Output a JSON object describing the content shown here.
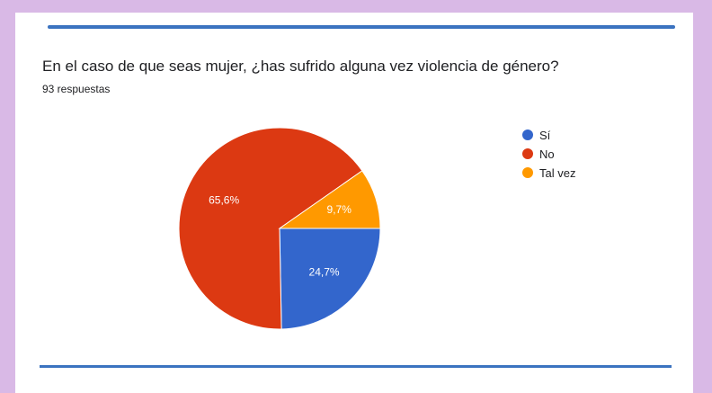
{
  "question": "En el caso de que seas mujer, ¿has sufrido alguna vez violencia de género?",
  "responses": "93 respuestas",
  "chart_data": {
    "type": "pie",
    "categories": [
      "Sí",
      "No",
      "Tal vez"
    ],
    "values": [
      24.7,
      65.6,
      9.7
    ],
    "labels": [
      "24,7%",
      "65,6%",
      "9,7%"
    ],
    "colors": [
      "#3366cc",
      "#dc3912",
      "#ff9900"
    ],
    "legend_position": "right"
  }
}
